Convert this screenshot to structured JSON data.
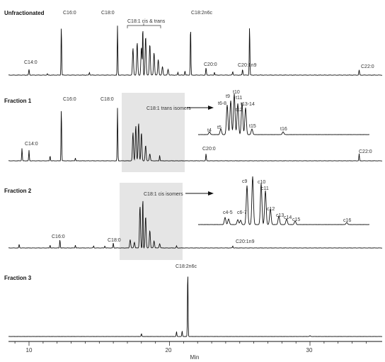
{
  "chart_data": {
    "type": "line",
    "description_of_figure": "",
    "x_axis": {
      "label": "Min",
      "ticks": [
        "10",
        "20",
        "30"
      ],
      "range": [
        8.5,
        34.5
      ]
    },
    "panels": [
      {
        "name": "Unfractionated",
        "peaks": [
          {
            "label": "C14:0",
            "rt": 10.0
          },
          {
            "label": "C16:0",
            "rt": 12.3
          },
          {
            "label": "C18:0",
            "rt": 16.3
          },
          {
            "label": "C18:1 cis & trans",
            "rt_range": [
              17.2,
              19.4
            ]
          },
          {
            "label": "C18:2n6c",
            "rt": 21.5
          },
          {
            "label": "C20:0",
            "rt": 22.6
          },
          {
            "label": "C20:1n9",
            "rt": 24.5
          },
          {
            "label": "C22:0",
            "rt": 33.5
          }
        ]
      },
      {
        "name": "Fraction 1",
        "highlight_label": "C18:1 trans isomers",
        "peaks": [
          {
            "label": "C14:0",
            "rt": 10.0
          },
          {
            "label": "C16:0",
            "rt": 12.3
          },
          {
            "label": "C18:0",
            "rt": 16.3
          },
          {
            "label": "C20:0",
            "rt": 22.6
          },
          {
            "label": "C22:0",
            "rt": 33.5
          }
        ],
        "inset_peaks": [
          "t4",
          "t5",
          "t6-8",
          "t9",
          "t10",
          "t11",
          "t12",
          "t13-14",
          "t15",
          "t16"
        ]
      },
      {
        "name": "Fraction 2",
        "highlight_label": "C18:1 cis isomers",
        "peaks": [
          {
            "label": "C16:0",
            "rt": 12.2
          },
          {
            "label": "C18:0",
            "rt": 16.0
          },
          {
            "label": "C20:1n9",
            "rt": 24.5
          }
        ],
        "inset_peaks": [
          "c4-5",
          "c6-7",
          "c9",
          "c10",
          "c11",
          "c12",
          "c13",
          "c14",
          "c15",
          "c16"
        ]
      },
      {
        "name": "Fraction 3",
        "peaks": [
          {
            "label": "C18:2n6c",
            "rt": 21.3
          }
        ]
      }
    ]
  }
}
